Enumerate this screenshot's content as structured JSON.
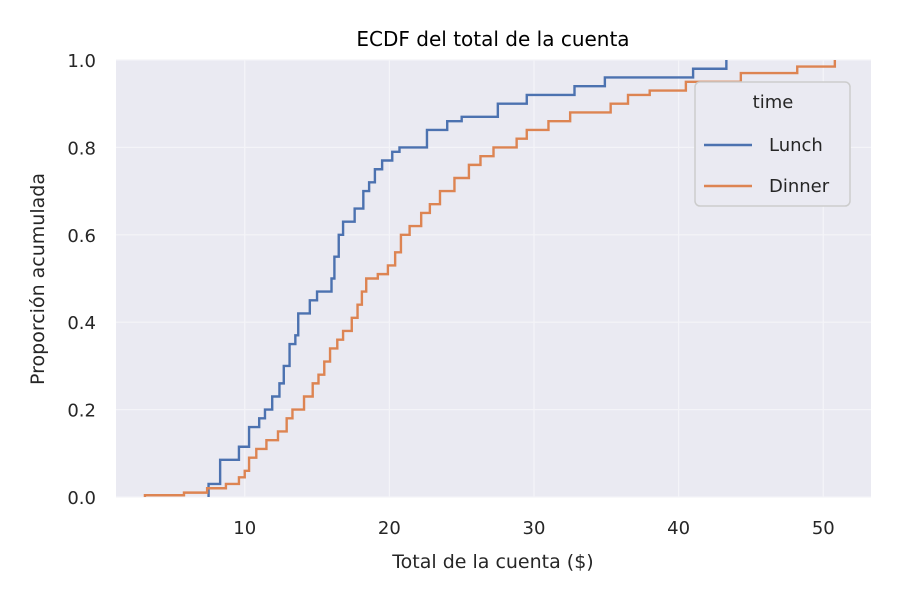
{
  "chart_data": {
    "type": "line",
    "subtype": "ecdf-step",
    "title": "ECDF del total de la cuenta",
    "xlabel": "Total de la cuenta ($)",
    "ylabel": "Proporción acumulada",
    "xlim": [
      1.1,
      53.3
    ],
    "ylim": [
      0.0,
      1.0
    ],
    "xticks": [
      10,
      20,
      30,
      40,
      50
    ],
    "yticks": [
      0.0,
      0.2,
      0.4,
      0.6,
      0.8,
      1.0
    ],
    "xtick_labels": [
      "10",
      "20",
      "30",
      "40",
      "50"
    ],
    "ytick_labels": [
      "0.0",
      "0.2",
      "0.4",
      "0.6",
      "0.8",
      "1.0"
    ],
    "grid": true,
    "legend": {
      "title": "time",
      "position": "upper right",
      "entries": [
        "Lunch",
        "Dinner"
      ]
    },
    "series": [
      {
        "name": "Lunch",
        "color": "#4c72b0",
        "x": [
          7.5,
          7.5,
          8.3,
          9.6,
          10.3,
          11.0,
          11.4,
          11.9,
          12.4,
          12.7,
          13.1,
          13.5,
          13.7,
          14.5,
          15.0,
          16.0,
          16.2,
          16.5,
          16.8,
          17.6,
          18.2,
          18.6,
          19.0,
          19.5,
          20.2,
          20.7,
          22.6,
          24.0,
          25.0,
          27.5,
          29.5,
          32.8,
          34.9,
          41.0,
          43.3
        ],
        "y": [
          0.0,
          0.03,
          0.085,
          0.115,
          0.16,
          0.18,
          0.2,
          0.23,
          0.26,
          0.3,
          0.35,
          0.37,
          0.42,
          0.45,
          0.47,
          0.5,
          0.55,
          0.6,
          0.63,
          0.66,
          0.7,
          0.72,
          0.75,
          0.77,
          0.79,
          0.8,
          0.84,
          0.86,
          0.87,
          0.9,
          0.92,
          0.94,
          0.96,
          0.98,
          1.0
        ]
      },
      {
        "name": "Dinner",
        "color": "#dd8452",
        "x": [
          3.1,
          5.8,
          7.4,
          8.7,
          9.6,
          10.0,
          10.3,
          10.8,
          11.5,
          12.3,
          12.9,
          13.3,
          14.1,
          14.7,
          15.1,
          15.5,
          15.9,
          16.4,
          16.8,
          17.4,
          17.8,
          18.1,
          18.4,
          19.2,
          19.9,
          20.4,
          20.8,
          21.4,
          22.2,
          22.8,
          23.5,
          24.5,
          25.5,
          26.3,
          27.2,
          28.8,
          29.5,
          31.0,
          32.5,
          35.3,
          36.5,
          38.0,
          40.5,
          44.3,
          48.2,
          50.8
        ],
        "y": [
          0.004,
          0.01,
          0.02,
          0.03,
          0.045,
          0.06,
          0.09,
          0.11,
          0.13,
          0.15,
          0.18,
          0.2,
          0.23,
          0.26,
          0.28,
          0.31,
          0.34,
          0.36,
          0.38,
          0.41,
          0.44,
          0.47,
          0.5,
          0.51,
          0.53,
          0.56,
          0.6,
          0.62,
          0.65,
          0.67,
          0.7,
          0.73,
          0.76,
          0.78,
          0.8,
          0.82,
          0.84,
          0.86,
          0.88,
          0.9,
          0.92,
          0.93,
          0.95,
          0.97,
          0.985,
          1.0
        ]
      }
    ]
  },
  "colors": {
    "plot_background": "#eaeaf2",
    "grid": "#ffffff",
    "lunch": "#4c72b0",
    "dinner": "#dd8452"
  }
}
